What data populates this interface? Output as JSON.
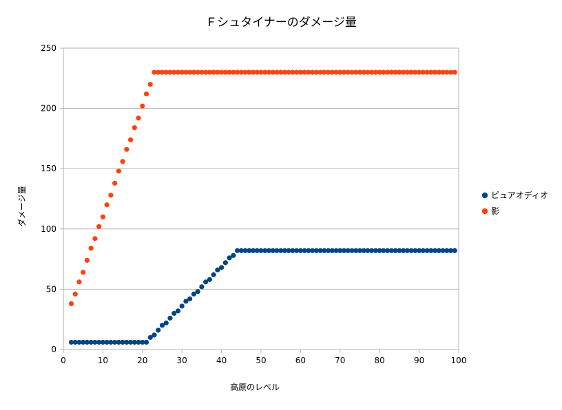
{
  "chart_data": {
    "type": "scatter",
    "title": "Ｆシュタイナーのダメージ量",
    "xlabel": "高原のレベル",
    "ylabel": "ダメージ量",
    "xlim": [
      0,
      100
    ],
    "ylim": [
      0,
      250
    ],
    "xticks": [
      0,
      10,
      20,
      30,
      40,
      50,
      60,
      70,
      80,
      90,
      100
    ],
    "yticks": [
      0,
      50,
      100,
      150,
      200,
      250
    ],
    "grid": "horizontal",
    "legend_position": "right",
    "series": [
      {
        "name": "ピュアオディオ",
        "color": "#004586",
        "x": [
          2,
          3,
          4,
          5,
          6,
          7,
          8,
          9,
          10,
          11,
          12,
          13,
          14,
          15,
          16,
          17,
          18,
          19,
          20,
          21,
          22,
          23,
          24,
          25,
          26,
          27,
          28,
          29,
          30,
          31,
          32,
          33,
          34,
          35,
          36,
          37,
          38,
          39,
          40,
          41,
          42,
          43,
          44,
          45,
          46,
          47,
          48,
          49,
          50,
          51,
          52,
          53,
          54,
          55,
          56,
          57,
          58,
          59,
          60,
          61,
          62,
          63,
          64,
          65,
          66,
          67,
          68,
          69,
          70,
          71,
          72,
          73,
          74,
          75,
          76,
          77,
          78,
          79,
          80,
          81,
          82,
          83,
          84,
          85,
          86,
          87,
          88,
          89,
          90,
          91,
          92,
          93,
          94,
          95,
          96,
          97,
          98,
          99
        ],
        "y": [
          6,
          6,
          6,
          6,
          6,
          6,
          6,
          6,
          6,
          6,
          6,
          6,
          6,
          6,
          6,
          6,
          6,
          6,
          6,
          6,
          10,
          12,
          16,
          20,
          22,
          26,
          30,
          32,
          36,
          40,
          42,
          46,
          48,
          52,
          56,
          58,
          62,
          66,
          68,
          72,
          76,
          78,
          82,
          82,
          82,
          82,
          82,
          82,
          82,
          82,
          82,
          82,
          82,
          82,
          82,
          82,
          82,
          82,
          82,
          82,
          82,
          82,
          82,
          82,
          82,
          82,
          82,
          82,
          82,
          82,
          82,
          82,
          82,
          82,
          82,
          82,
          82,
          82,
          82,
          82,
          82,
          82,
          82,
          82,
          82,
          82,
          82,
          82,
          82,
          82,
          82,
          82,
          82,
          82,
          82,
          82,
          82,
          82
        ]
      },
      {
        "name": "影",
        "color": "#ff420e",
        "x": [
          2,
          3,
          4,
          5,
          6,
          7,
          8,
          9,
          10,
          11,
          12,
          13,
          14,
          15,
          16,
          17,
          18,
          19,
          20,
          21,
          22,
          23,
          24,
          25,
          26,
          27,
          28,
          29,
          30,
          31,
          32,
          33,
          34,
          35,
          36,
          37,
          38,
          39,
          40,
          41,
          42,
          43,
          44,
          45,
          46,
          47,
          48,
          49,
          50,
          51,
          52,
          53,
          54,
          55,
          56,
          57,
          58,
          59,
          60,
          61,
          62,
          63,
          64,
          65,
          66,
          67,
          68,
          69,
          70,
          71,
          72,
          73,
          74,
          75,
          76,
          77,
          78,
          79,
          80,
          81,
          82,
          83,
          84,
          85,
          86,
          87,
          88,
          89,
          90,
          91,
          92,
          93,
          94,
          95,
          96,
          97,
          98,
          99
        ],
        "y": [
          38,
          46,
          56,
          64,
          74,
          84,
          92,
          102,
          110,
          120,
          128,
          138,
          148,
          156,
          166,
          174,
          184,
          192,
          202,
          212,
          220,
          230,
          230,
          230,
          230,
          230,
          230,
          230,
          230,
          230,
          230,
          230,
          230,
          230,
          230,
          230,
          230,
          230,
          230,
          230,
          230,
          230,
          230,
          230,
          230,
          230,
          230,
          230,
          230,
          230,
          230,
          230,
          230,
          230,
          230,
          230,
          230,
          230,
          230,
          230,
          230,
          230,
          230,
          230,
          230,
          230,
          230,
          230,
          230,
          230,
          230,
          230,
          230,
          230,
          230,
          230,
          230,
          230,
          230,
          230,
          230,
          230,
          230,
          230,
          230,
          230,
          230,
          230,
          230,
          230,
          230,
          230,
          230,
          230,
          230,
          230,
          230,
          230
        ]
      }
    ]
  }
}
